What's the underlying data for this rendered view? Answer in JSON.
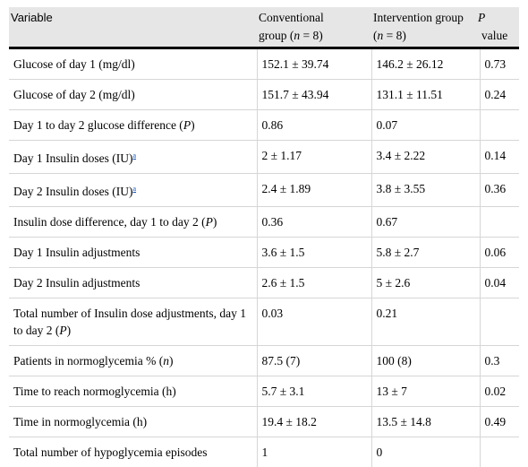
{
  "table": {
    "headers": {
      "variable": "Variable",
      "conventional_line1": "Conventional",
      "conventional_line2_pre": "group (",
      "conventional_n": "n",
      "conventional_line2_post": " = 8)",
      "intervention_line1": "Intervention group",
      "intervention_line2_pre": "(",
      "intervention_n": "n",
      "intervention_line2_post": " = 8)",
      "p_line1": "P",
      "p_line2": "value"
    },
    "footnote_marker": "a",
    "rows": [
      {
        "variable": "Glucose of day 1 (mg/dl)",
        "conventional": "152.1 ± 39.74",
        "intervention": "146.2 ± 26.12",
        "p": "0.73"
      },
      {
        "variable": "Glucose of day 2 (mg/dl)",
        "conventional": "151.7 ± 43.94",
        "intervention": "131.1 ± 11.51",
        "p": "0.24"
      },
      {
        "variable_pre": "Day 1 to day 2 glucose difference (",
        "variable_ital": "P",
        "variable_post": ")",
        "conventional": "0.86",
        "intervention": "0.07",
        "p": ""
      },
      {
        "variable": "Day 1 Insulin doses (IU)",
        "conventional": "2 ± 1.17",
        "intervention": "3.4 ± 2.22",
        "p": "0.14"
      },
      {
        "variable": "Day 2 Insulin doses (IU)",
        "conventional": "2.4 ± 1.89",
        "intervention": "3.8 ± 3.55",
        "p": "0.36"
      },
      {
        "variable_pre": "Insulin dose difference, day 1 to day 2 (",
        "variable_ital": "P",
        "variable_post": ")",
        "conventional": "0.36",
        "intervention": "0.67",
        "p": ""
      },
      {
        "variable": "Day 1 Insulin adjustments",
        "conventional": "3.6 ± 1.5",
        "intervention": "5.8 ± 2.7",
        "p": "0.06"
      },
      {
        "variable": "Day 2 Insulin adjustments",
        "conventional": "2.6 ± 1.5",
        "intervention": "5 ± 2.6",
        "p": "0.04"
      },
      {
        "variable_pre": "Total number of Insulin dose adjustments, day 1 to day 2 (",
        "variable_ital": "P",
        "variable_post": ")",
        "conventional": "0.03",
        "intervention": "0.21",
        "p": ""
      },
      {
        "variable_pre": "Patients in normoglycemia % (",
        "variable_ital": "n",
        "variable_post": ")",
        "conventional": "87.5 (7)",
        "intervention": "100 (8)",
        "p": "0.3"
      },
      {
        "variable": "Time to reach normoglycemia (h)",
        "conventional": "5.7 ± 3.1",
        "intervention": "13 ± 7",
        "p": "0.02"
      },
      {
        "variable": "Time in normoglycemia (h)",
        "conventional": "19.4 ± 18.2",
        "intervention": "13.5 ± 14.8",
        "p": "0.49"
      },
      {
        "variable": "Total number of hypoglycemia episodes",
        "conventional": "1",
        "intervention": "0",
        "p": ""
      }
    ]
  }
}
